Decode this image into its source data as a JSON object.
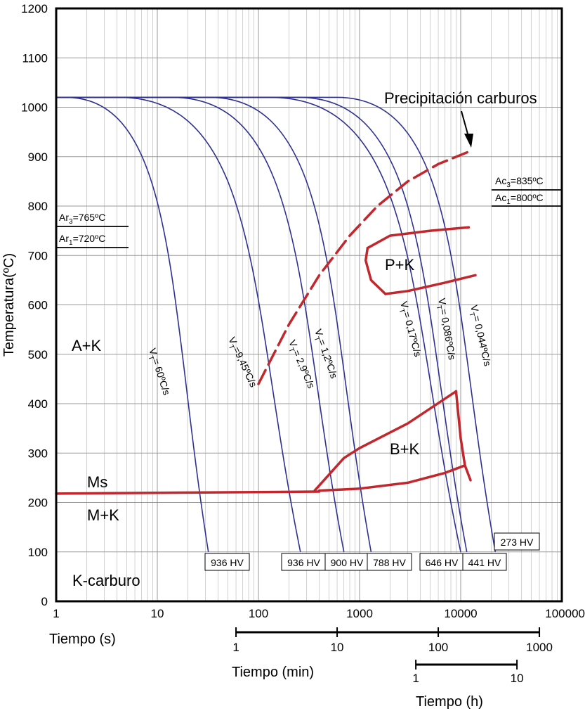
{
  "chart_data": {
    "type": "line",
    "title": "",
    "ylabel": "Temperatura(ºC)",
    "y_ticks": [
      "0",
      "100",
      "200",
      "300",
      "400",
      "500",
      "600",
      "700",
      "800",
      "900",
      "1000",
      "1100",
      "1200"
    ],
    "ylim": [
      0,
      1200
    ],
    "x_scale": "log",
    "xlim": [
      1,
      100000
    ],
    "x_ticks": [
      "1",
      "10",
      "100",
      "1000",
      "10000",
      "100000"
    ],
    "xlabel": "Tiempo (s)",
    "min_axis": {
      "label": "Tiempo (min)",
      "ticks": [
        "1",
        "10",
        "100",
        "1000"
      ]
    },
    "h_axis": {
      "label": "Tiempo (h)",
      "ticks": [
        "1",
        "10"
      ]
    },
    "austenitizing_temp_c": 1020,
    "cooling_curves": [
      {
        "rate": "60ºC/s",
        "label_sub": "T",
        "label_value": "= 60ºC/s",
        "hold_end_s": 1.25,
        "end_s": 32,
        "end_temp_c": 100,
        "hardness": "936 HV"
      },
      {
        "rate": "9,45ºC/s",
        "label_sub": "T",
        "label_value": "=9,45ºC/s",
        "hold_end_s": 4.2,
        "end_s": 260,
        "end_temp_c": 100,
        "hardness": "936 HV"
      },
      {
        "rate": "2,9ºC/s",
        "label_sub": "T",
        "label_value": "= 2,9ºC/s",
        "hold_end_s": 14,
        "end_s": 700,
        "end_temp_c": 100,
        "hardness": "900 HV"
      },
      {
        "rate": "1,2ºC/s",
        "label_sub": "T",
        "label_value": "= 1,2ºC/s",
        "hold_end_s": 33,
        "end_s": 1300,
        "end_temp_c": 100,
        "hardness": "788 HV"
      },
      {
        "rate": "0,17ºC/s",
        "label_sub": "T",
        "label_value": "= 0,17ºC/s",
        "hold_end_s": 130,
        "end_s": 10000,
        "end_temp_c": 100,
        "hardness": "646 HV"
      },
      {
        "rate": "0,086ºC/s",
        "label_sub": "T",
        "label_value": "= 0,086ºC/s",
        "hold_end_s": 250,
        "end_s": 11500,
        "end_temp_c": 100,
        "hardness": "441 HV"
      },
      {
        "rate": "0,044ºC/s",
        "label_sub": "T",
        "label_value": "= 0,044ºC/s",
        "hold_end_s": 600,
        "end_s": 22000,
        "end_temp_c": 100,
        "hardness": "273 HV"
      }
    ],
    "hardness_labels": [
      "936 HV",
      "936 HV",
      "900 HV",
      "788 HV",
      "646 HV",
      "441 HV",
      "273 HV"
    ],
    "rate_prefix": "V",
    "regions": {
      "austenite_carbide": "A+K",
      "pearlite_carbide": "P+K",
      "bainite_carbide": "B+K",
      "ms": "Ms",
      "martensite_carbide": "M+K",
      "carbide": "K-carburo"
    },
    "critical_temps": {
      "ar3": {
        "sym": "Ar",
        "sub": "3",
        "val": "=765ºC",
        "value_c": 765
      },
      "ar1": {
        "sym": "Ar",
        "sub": "1",
        "val": "=720ºC",
        "value_c": 720
      },
      "ac3": {
        "sym": "Ac",
        "sub": "3",
        "val": "=835ºC",
        "value_c": 835
      },
      "ac1": {
        "sym": "Ac",
        "sub": "1",
        "val": "=800ºC",
        "value_c": 800
      }
    },
    "annotation": "Precipitación carburos",
    "carbide_precipitation_line": [
      [
        100,
        440
      ],
      [
        200,
        560
      ],
      [
        400,
        660
      ],
      [
        800,
        740
      ],
      [
        1500,
        800
      ],
      [
        3000,
        850
      ],
      [
        6000,
        885
      ],
      [
        12000,
        910
      ]
    ],
    "pearlite_nose": {
      "upper": [
        [
          1200,
          715
        ],
        [
          2000,
          740
        ],
        [
          5000,
          750
        ],
        [
          12000,
          757
        ]
      ],
      "nose": [
        [
          1200,
          715
        ],
        [
          1150,
          690
        ],
        [
          1300,
          650
        ],
        [
          1800,
          622
        ]
      ],
      "lower": [
        [
          1800,
          622
        ],
        [
          3000,
          628
        ],
        [
          7000,
          645
        ],
        [
          14000,
          660
        ]
      ]
    },
    "bainite": {
      "start": [
        [
          360,
          224
        ],
        [
          700,
          290
        ],
        [
          1000,
          310
        ],
        [
          3000,
          360
        ],
        [
          9000,
          425
        ]
      ],
      "finish_right": [
        [
          9000,
          425
        ],
        [
          10000,
          330
        ],
        [
          11000,
          275
        ],
        [
          12500,
          245
        ]
      ],
      "finish": [
        [
          400,
          224
        ],
        [
          1000,
          228
        ],
        [
          3000,
          240
        ],
        [
          7000,
          260
        ],
        [
          11000,
          275
        ]
      ]
    },
    "ms_line": [
      [
        1,
        218
      ],
      [
        400,
        222
      ]
    ]
  }
}
